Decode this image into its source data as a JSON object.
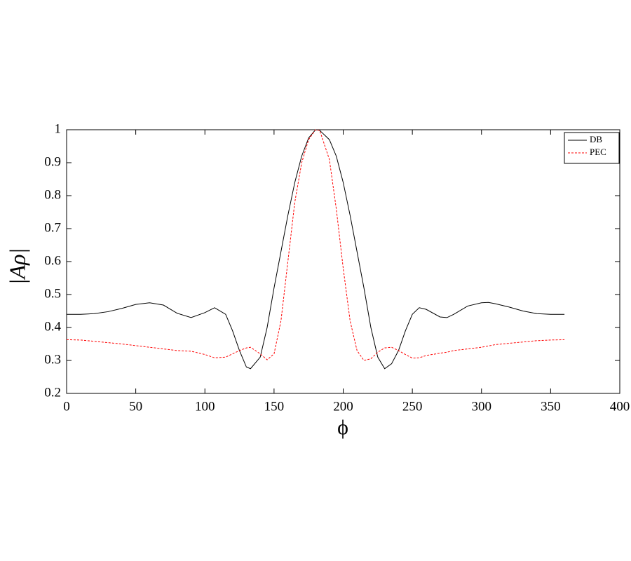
{
  "chart_data": {
    "type": "line",
    "xlabel": "ϕ",
    "ylabel": "|Aρ|",
    "x": [
      0,
      10,
      20,
      30,
      40,
      50,
      60,
      70,
      80,
      90,
      100,
      107,
      115,
      120,
      125,
      130,
      133,
      140,
      145,
      150,
      155,
      160,
      165,
      170,
      175,
      180,
      183,
      190,
      195,
      200,
      205,
      210,
      215,
      220,
      225,
      230,
      235,
      240,
      245,
      250,
      255,
      260,
      270,
      275,
      280,
      290,
      300,
      305,
      310,
      320,
      330,
      340,
      350,
      360
    ],
    "series": [
      {
        "name": "DB",
        "color": "#000000",
        "linestyle": "solid",
        "values": [
          0.44,
          0.44,
          0.442,
          0.448,
          0.458,
          0.47,
          0.475,
          0.468,
          0.443,
          0.43,
          0.445,
          0.46,
          0.44,
          0.39,
          0.33,
          0.28,
          0.275,
          0.31,
          0.4,
          0.52,
          0.63,
          0.74,
          0.84,
          0.92,
          0.975,
          1.0,
          0.998,
          0.97,
          0.92,
          0.84,
          0.74,
          0.63,
          0.52,
          0.4,
          0.31,
          0.275,
          0.29,
          0.33,
          0.39,
          0.44,
          0.46,
          0.455,
          0.432,
          0.43,
          0.44,
          0.465,
          0.475,
          0.476,
          0.472,
          0.462,
          0.45,
          0.442,
          0.44,
          0.44
        ]
      },
      {
        "name": "PEC",
        "color": "#ff0000",
        "linestyle": "dashed",
        "values": [
          0.363,
          0.362,
          0.358,
          0.354,
          0.35,
          0.345,
          0.34,
          0.335,
          0.33,
          0.328,
          0.318,
          0.308,
          0.31,
          0.32,
          0.33,
          0.338,
          0.34,
          0.32,
          0.302,
          0.32,
          0.42,
          0.6,
          0.78,
          0.9,
          0.97,
          1.0,
          0.998,
          0.91,
          0.76,
          0.58,
          0.42,
          0.33,
          0.3,
          0.305,
          0.325,
          0.338,
          0.34,
          0.33,
          0.318,
          0.307,
          0.308,
          0.315,
          0.322,
          0.325,
          0.33,
          0.335,
          0.34,
          0.344,
          0.348,
          0.352,
          0.356,
          0.36,
          0.362,
          0.363
        ]
      }
    ],
    "xlim": [
      0,
      400
    ],
    "xticks": [
      0,
      50,
      100,
      150,
      200,
      250,
      300,
      350,
      400
    ],
    "ylim": [
      0.2,
      1
    ],
    "yticks": [
      0.2,
      0.3,
      0.4,
      0.5,
      0.6,
      0.7,
      0.8,
      0.9,
      1
    ],
    "legend": "upper right"
  }
}
